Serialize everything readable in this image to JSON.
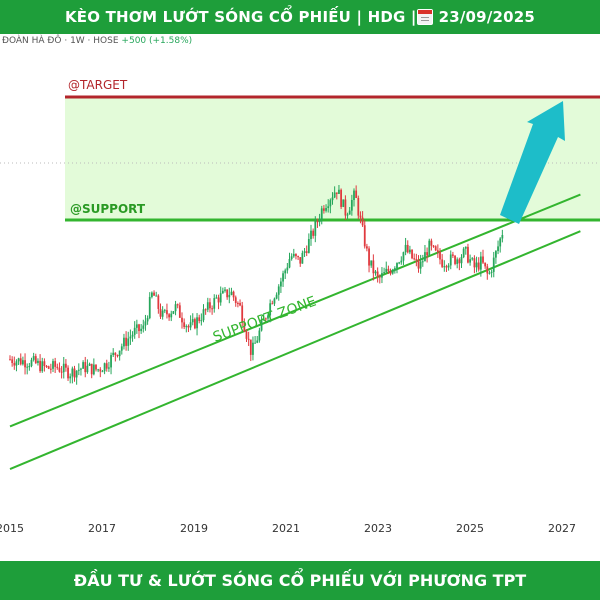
{
  "header": {
    "title": "KÈO THƠM LƯỚT SÓNG CỔ PHIẾU | HDG | ",
    "date": "23/09/2025",
    "calendar_icon": "calendar-icon"
  },
  "info_bar": {
    "name": "ĐOÀN HÀ ĐÔ · 1W · HOSE",
    "change": "+500 (+1.58%)"
  },
  "annotations": {
    "target_label": "@TARGET",
    "support_label": "@SUPPORT",
    "zone_label": "SUPPORT ZONE"
  },
  "footer": {
    "text": "ĐẦU TƯ & LƯỚT SÓNG CỔ PHIẾU VỚI PHƯƠNG TPT"
  },
  "colors": {
    "banner": "#1e9e3a",
    "target_line": "#b3252b",
    "support_line": "#33b52f",
    "zone_fill": "#e3fbd9",
    "arrow": "#1dbdc9",
    "up": "#26a65b",
    "down": "#e0393e"
  },
  "chart_data": {
    "type": "candlestick",
    "x_ticks": [
      "2015",
      "2017",
      "2019",
      "2021",
      "2023",
      "2025",
      "2027"
    ],
    "x_tick_values": [
      2015,
      2017,
      2019,
      2021,
      2023,
      2025,
      2027
    ],
    "xlim": [
      2015,
      2027.5
    ],
    "ylim": [
      0,
      60
    ],
    "grid": false,
    "levels": {
      "target": 56,
      "support": 29
    },
    "trend_channel": [
      {
        "from": [
          2015,
          6
        ],
        "to": [
          2027.4,
          44
        ]
      },
      {
        "from": [
          2015,
          -1
        ],
        "to": [
          2027.4,
          38
        ]
      }
    ],
    "arrow": {
      "from": [
        2025.5,
        30
      ],
      "to": [
        2026.75,
        54
      ]
    },
    "series": [
      {
        "values": [
          [
            2015.0,
            17.0
          ],
          [
            2015.5,
            16.5
          ],
          [
            2015.8,
            15.5
          ],
          [
            2016.0,
            15.8
          ],
          [
            2016.3,
            14.8
          ],
          [
            2016.6,
            15.7
          ],
          [
            2016.9,
            15.3
          ],
          [
            2017.1,
            16.3
          ],
          [
            2017.4,
            19.0
          ],
          [
            2017.7,
            21.5
          ],
          [
            2017.9,
            22.0
          ],
          [
            2018.1,
            28.0
          ],
          [
            2018.3,
            24.0
          ],
          [
            2018.6,
            25.5
          ],
          [
            2018.9,
            22.0
          ],
          [
            2019.2,
            24.5
          ],
          [
            2019.5,
            27.0
          ],
          [
            2019.8,
            28.0
          ],
          [
            2020.0,
            25.5
          ],
          [
            2020.25,
            18.0
          ],
          [
            2020.4,
            21.0
          ],
          [
            2020.7,
            27.0
          ],
          [
            2020.9,
            30.0
          ],
          [
            2021.1,
            34.0
          ],
          [
            2021.3,
            33.0
          ],
          [
            2021.6,
            38.0
          ],
          [
            2021.8,
            42.0
          ],
          [
            2022.1,
            45.0
          ],
          [
            2022.3,
            41.0
          ],
          [
            2022.5,
            44.0
          ],
          [
            2022.8,
            33.0
          ],
          [
            2023.0,
            30.0
          ],
          [
            2023.3,
            32.0
          ],
          [
            2023.6,
            35.0
          ],
          [
            2023.9,
            32.0
          ],
          [
            2024.1,
            35.5
          ],
          [
            2024.4,
            33.0
          ],
          [
            2024.7,
            33.5
          ],
          [
            2024.9,
            34.5
          ],
          [
            2025.1,
            32.0
          ],
          [
            2025.25,
            33.0
          ],
          [
            2025.4,
            30.5
          ],
          [
            2025.55,
            34.0
          ],
          [
            2025.75,
            39.0
          ]
        ]
      }
    ]
  }
}
